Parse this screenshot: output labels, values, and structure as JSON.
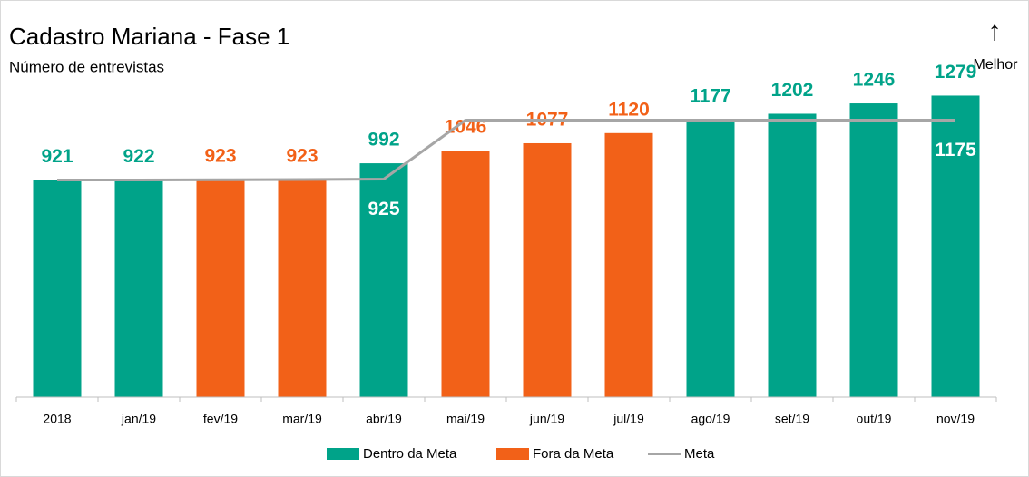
{
  "chart_data": {
    "type": "bar",
    "title": "Cadastro Mariana - Fase 1",
    "subtitle": "Número de entrevistas",
    "annotations": [
      "↑",
      "Melhor"
    ],
    "categories": [
      "2018",
      "jan/19",
      "fev/19",
      "mar/19",
      "abr/19",
      "mai/19",
      "jun/19",
      "jul/19",
      "ago/19",
      "set/19",
      "out/19",
      "nov/19"
    ],
    "series": [
      {
        "name": "Dentro da Meta",
        "type": "bar",
        "color": "#00a389",
        "values": [
          921,
          922,
          null,
          null,
          992,
          null,
          null,
          null,
          1177,
          1202,
          1246,
          1279
        ]
      },
      {
        "name": "Fora da Meta",
        "type": "bar",
        "color": "#f26118",
        "values": [
          null,
          null,
          923,
          923,
          null,
          1046,
          1077,
          1120,
          null,
          null,
          null,
          null
        ]
      },
      {
        "name": "Meta",
        "type": "line",
        "color": "#a6a6a6",
        "values": [
          921,
          921,
          922,
          923,
          925,
          1175,
          1175,
          1175,
          1175,
          1175,
          1175,
          1175
        ],
        "labeled_points": [
          4,
          11
        ]
      }
    ],
    "ylim": [
      0,
      1300
    ],
    "legend": "bottom"
  }
}
